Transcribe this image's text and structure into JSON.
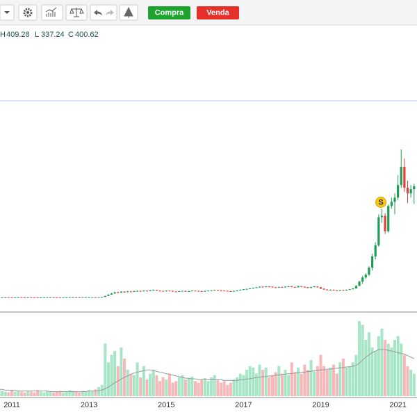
{
  "toolbar": {
    "buy": "Compra",
    "sell": "Venda"
  },
  "chart_data": {
    "type": "candlestick",
    "ohlc_labels": [
      "H",
      "L",
      "C"
    ],
    "up_color": "#1f9d55",
    "down_color": "#e0403a",
    "volume_up_color": "#a6e6c6",
    "volume_down_color": "#f6b8b8",
    "volume_ma_color": "#999999",
    "categories": [
      null,
      null,
      null,
      null,
      "2011",
      null,
      null,
      null,
      null,
      null,
      null,
      null,
      null,
      null,
      null,
      null,
      null,
      null,
      null,
      null,
      null,
      null,
      null,
      null,
      null,
      null,
      null,
      null,
      "2013",
      null,
      null,
      null,
      null,
      null,
      null,
      null,
      null,
      null,
      null,
      null,
      null,
      null,
      null,
      null,
      null,
      null,
      null,
      null,
      null,
      null,
      null,
      null,
      "2015",
      null,
      null,
      null,
      null,
      null,
      null,
      null,
      null,
      null,
      null,
      null,
      null,
      null,
      null,
      null,
      null,
      null,
      null,
      null,
      null,
      null,
      null,
      null,
      "2017",
      null,
      null,
      null,
      null,
      null,
      null,
      null,
      null,
      null,
      null,
      null,
      null,
      null,
      null,
      null,
      null,
      null,
      null,
      null,
      null,
      null,
      null,
      null,
      "2019",
      null,
      null,
      null,
      null,
      null,
      null,
      null,
      null,
      null,
      null,
      null,
      null,
      null,
      null,
      null,
      null,
      null,
      null,
      null,
      null,
      null,
      null,
      null,
      "2021",
      null,
      null,
      null,
      null,
      null
    ],
    "candles": [
      [
        3.9,
        4.2,
        3.8,
        4.0
      ],
      [
        4.0,
        4.3,
        3.9,
        4.1
      ],
      [
        4.1,
        4.4,
        4.0,
        4.2
      ],
      [
        4.2,
        4.4,
        3.9,
        4.1
      ],
      [
        4.1,
        4.3,
        3.8,
        4.0
      ],
      [
        4.0,
        4.4,
        3.9,
        4.2
      ],
      [
        4.2,
        4.5,
        4.1,
        4.3
      ],
      [
        4.3,
        4.4,
        3.9,
        4.1
      ],
      [
        4.1,
        4.3,
        3.8,
        4.0
      ],
      [
        4.0,
        4.4,
        3.9,
        4.2
      ],
      [
        4.2,
        4.3,
        3.9,
        4.1
      ],
      [
        4.1,
        4.2,
        3.8,
        4.0
      ],
      [
        4.0,
        4.1,
        3.6,
        3.9
      ],
      [
        3.9,
        4.2,
        3.8,
        4.0
      ],
      [
        4.0,
        4.3,
        3.9,
        4.1
      ],
      [
        4.1,
        4.4,
        4.0,
        4.2
      ],
      [
        4.2,
        4.5,
        4.1,
        4.3
      ],
      [
        4.3,
        4.4,
        4.0,
        4.2
      ],
      [
        4.2,
        4.3,
        3.9,
        4.1
      ],
      [
        4.1,
        4.2,
        3.8,
        4.0
      ],
      [
        4.0,
        4.3,
        3.9,
        4.1
      ],
      [
        4.1,
        4.4,
        4.0,
        4.2
      ],
      [
        4.2,
        4.5,
        4.1,
        4.3
      ],
      [
        4.3,
        4.6,
        4.2,
        4.4
      ],
      [
        4.4,
        4.5,
        4.1,
        4.3
      ],
      [
        4.3,
        4.4,
        4.0,
        4.2
      ],
      [
        4.2,
        4.5,
        4.1,
        4.3
      ],
      [
        4.3,
        4.6,
        4.2,
        4.4
      ],
      [
        4.4,
        4.7,
        4.3,
        4.5
      ],
      [
        4.5,
        4.8,
        4.4,
        4.6
      ],
      [
        4.6,
        4.8,
        4.3,
        4.5
      ],
      [
        4.5,
        5.0,
        4.4,
        4.8
      ],
      [
        4.8,
        6.0,
        4.7,
        5.5
      ],
      [
        5.5,
        10,
        5.3,
        9
      ],
      [
        9,
        15,
        8.5,
        14
      ],
      [
        14,
        20,
        13,
        18
      ],
      [
        18,
        24,
        17,
        22
      ],
      [
        22,
        25,
        19,
        21
      ],
      [
        21,
        26,
        20,
        24
      ],
      [
        24,
        26,
        21,
        23
      ],
      [
        23,
        27,
        22,
        25
      ],
      [
        25,
        27,
        22,
        24
      ],
      [
        24,
        28,
        23,
        26
      ],
      [
        26,
        29,
        25,
        27
      ],
      [
        27,
        28,
        24,
        26
      ],
      [
        26,
        30,
        25,
        28
      ],
      [
        28,
        29,
        25,
        27
      ],
      [
        27,
        31,
        26,
        29
      ],
      [
        29,
        32,
        28,
        30
      ],
      [
        30,
        31,
        27,
        28
      ],
      [
        28,
        29,
        26,
        27
      ],
      [
        27,
        28,
        25,
        26
      ],
      [
        26,
        29,
        25,
        28
      ],
      [
        28,
        29,
        26,
        27
      ],
      [
        27,
        28,
        24,
        25
      ],
      [
        25,
        26,
        23,
        24
      ],
      [
        24,
        27,
        23,
        26
      ],
      [
        26,
        28,
        25,
        27
      ],
      [
        27,
        28,
        24,
        25
      ],
      [
        25,
        27,
        24,
        26
      ],
      [
        26,
        29,
        25,
        28
      ],
      [
        28,
        29,
        26,
        27
      ],
      [
        27,
        28,
        25,
        26
      ],
      [
        26,
        27,
        24,
        25
      ],
      [
        25,
        28,
        24,
        27
      ],
      [
        27,
        29,
        26,
        28
      ],
      [
        28,
        30,
        27,
        29
      ],
      [
        29,
        31,
        28,
        30
      ],
      [
        30,
        31,
        28,
        29
      ],
      [
        29,
        30,
        27,
        28
      ],
      [
        28,
        29,
        26,
        27
      ],
      [
        27,
        28,
        25,
        26
      ],
      [
        26,
        27,
        24,
        25
      ],
      [
        25,
        28,
        24,
        27
      ],
      [
        27,
        30,
        26,
        29
      ],
      [
        29,
        32,
        28,
        31
      ],
      [
        31,
        34,
        30,
        33
      ],
      [
        33,
        35,
        32,
        34
      ],
      [
        34,
        37,
        33,
        36
      ],
      [
        36,
        39,
        35,
        38
      ],
      [
        38,
        41,
        37,
        40
      ],
      [
        40,
        43,
        39,
        42
      ],
      [
        42,
        43,
        39,
        41
      ],
      [
        41,
        44,
        40,
        43
      ],
      [
        43,
        44,
        41,
        42
      ],
      [
        42,
        43,
        39,
        40
      ],
      [
        40,
        41,
        37,
        39
      ],
      [
        39,
        42,
        38,
        41
      ],
      [
        41,
        42,
        38,
        40
      ],
      [
        40,
        43,
        39,
        42
      ],
      [
        42,
        45,
        41,
        43
      ],
      [
        43,
        44,
        40,
        41
      ],
      [
        41,
        42,
        39,
        40
      ],
      [
        40,
        46,
        39,
        44
      ],
      [
        44,
        45,
        41,
        42
      ],
      [
        42,
        43,
        39,
        40
      ],
      [
        40,
        41,
        36,
        38
      ],
      [
        38,
        42,
        37,
        41
      ],
      [
        41,
        44,
        40,
        43
      ],
      [
        43,
        44,
        39,
        40
      ],
      [
        40,
        41,
        34,
        35
      ],
      [
        35,
        36,
        31,
        32
      ],
      [
        32,
        33,
        29,
        30
      ],
      [
        30,
        32,
        29,
        31
      ],
      [
        31,
        32,
        28,
        29
      ],
      [
        29,
        30,
        27,
        28
      ],
      [
        28,
        31,
        27,
        30
      ],
      [
        30,
        31,
        28,
        29
      ],
      [
        29,
        32,
        28,
        31
      ],
      [
        31,
        34,
        30,
        33
      ],
      [
        33,
        37,
        32,
        36
      ],
      [
        36,
        47,
        35,
        45
      ],
      [
        45,
        64,
        44,
        60
      ],
      [
        60,
        80,
        52,
        75
      ],
      [
        75,
        90,
        70,
        85
      ],
      [
        85,
        115,
        80,
        110
      ],
      [
        110,
        160,
        100,
        150
      ],
      [
        150,
        200,
        140,
        190
      ],
      [
        190,
        300,
        185,
        290
      ],
      [
        290,
        320,
        270,
        295
      ],
      [
        295,
        305,
        230,
        240
      ],
      [
        240,
        335,
        235,
        330
      ],
      [
        330,
        360,
        320,
        345
      ],
      [
        345,
        375,
        300,
        360
      ],
      [
        360,
        440,
        350,
        405
      ],
      [
        405,
        532,
        395,
        470
      ],
      [
        470,
        500,
        380,
        395
      ],
      [
        395,
        420,
        340,
        375
      ],
      [
        375,
        405,
        360,
        390
      ],
      [
        390,
        409.28,
        337.24,
        400.62
      ]
    ],
    "volume": [
      8,
      7,
      6,
      5,
      8,
      6,
      7,
      6,
      5,
      7,
      6,
      5,
      8,
      6,
      5,
      7,
      6,
      5,
      6,
      7,
      5,
      6,
      8,
      7,
      6,
      5,
      7,
      6,
      8,
      7,
      9,
      12,
      15,
      70,
      45,
      55,
      60,
      40,
      65,
      50,
      35,
      30,
      28,
      45,
      25,
      40,
      22,
      30,
      35,
      28,
      20,
      25,
      22,
      30,
      18,
      20,
      25,
      28,
      22,
      24,
      26,
      20,
      18,
      22,
      24,
      20,
      25,
      28,
      22,
      18,
      20,
      15,
      18,
      22,
      25,
      30,
      28,
      35,
      40,
      38,
      30,
      42,
      35,
      38,
      25,
      28,
      32,
      40,
      30,
      35,
      28,
      45,
      32,
      38,
      30,
      42,
      35,
      48,
      33,
      40,
      55,
      40,
      35,
      38,
      42,
      30,
      45,
      50,
      38,
      40,
      45,
      55,
      100,
      95,
      75,
      85,
      65,
      60,
      80,
      90,
      75,
      70,
      65,
      75,
      80,
      70,
      55,
      40,
      35,
      30
    ],
    "volume_ma": [
      9,
      9,
      8,
      8,
      8,
      8,
      7,
      7,
      7,
      7,
      7,
      7,
      7,
      7,
      7,
      7,
      6,
      6,
      6,
      6,
      6,
      6,
      6,
      6,
      6,
      6,
      6,
      6,
      7,
      7,
      7,
      7,
      8,
      10,
      12,
      15,
      18,
      20,
      23,
      25,
      27,
      29,
      31,
      32,
      33,
      34,
      35,
      35,
      34,
      33,
      32,
      31,
      30,
      29,
      28,
      27,
      26,
      25,
      24,
      24,
      23,
      23,
      22,
      22,
      22,
      22,
      22,
      22,
      22,
      22,
      21,
      21,
      21,
      21,
      21,
      22,
      22,
      23,
      23,
      24,
      25,
      25,
      26,
      26,
      27,
      27,
      28,
      28,
      29,
      29,
      30,
      30,
      31,
      31,
      32,
      32,
      33,
      33,
      34,
      34,
      35,
      35,
      36,
      36,
      37,
      37,
      38,
      38,
      39,
      39,
      40,
      41,
      44,
      48,
      52,
      55,
      58,
      60,
      62,
      62,
      62,
      61,
      60,
      59,
      58,
      57,
      56,
      54,
      52,
      50
    ]
  }
}
